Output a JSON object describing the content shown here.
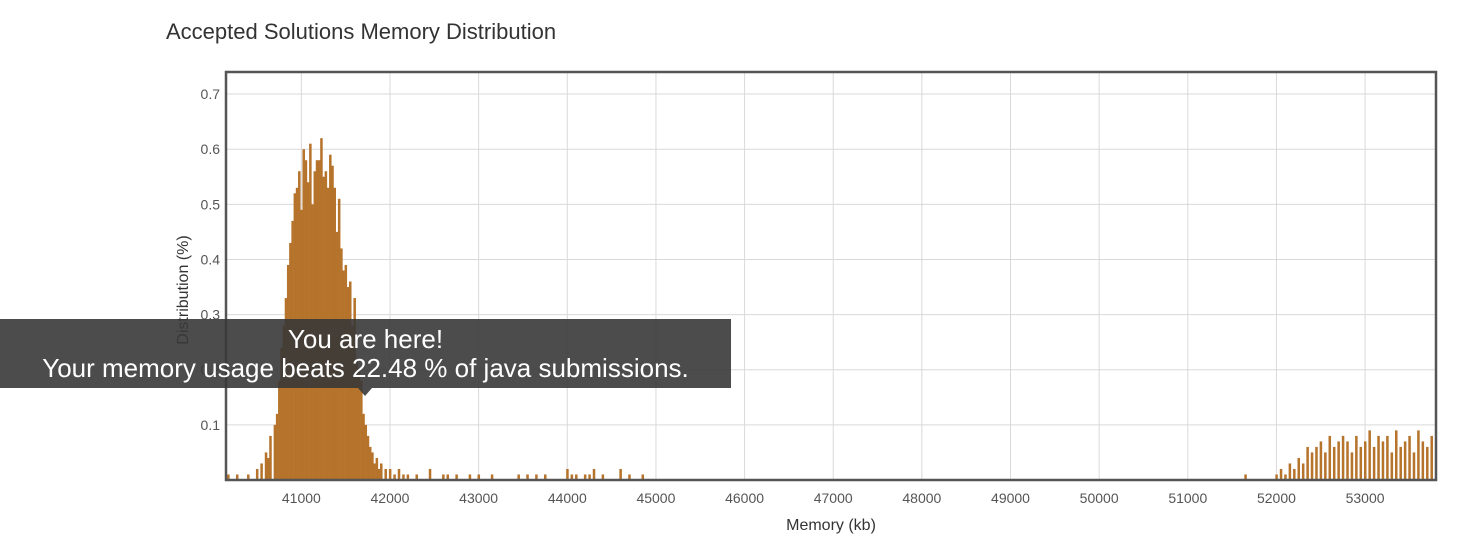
{
  "chart_data": {
    "type": "bar",
    "title": "Accepted Solutions Memory Distribution",
    "xlabel": "Memory (kb)",
    "ylabel": "Distribution (%)",
    "xlim": [
      40150,
      53800
    ],
    "ylim": [
      0,
      0.74
    ],
    "x_ticks": [
      41000,
      42000,
      43000,
      44000,
      45000,
      46000,
      47000,
      48000,
      49000,
      50000,
      51000,
      52000,
      53000
    ],
    "y_ticks": [
      0.1,
      0.2,
      0.3,
      0.4,
      0.5,
      0.6,
      0.7
    ],
    "grid": true,
    "bar_color": "#b5732b",
    "bin_width_kb": 25,
    "series": [
      {
        "x": [
          40175,
          40275,
          40400,
          40500,
          40550,
          40600,
          40625,
          40650,
          40700,
          40725,
          40750,
          40775,
          40800,
          40825,
          40850,
          40875,
          40900,
          40925,
          40950,
          40975,
          41000,
          41025,
          41050,
          41075,
          41100,
          41125,
          41150,
          41175,
          41200,
          41225,
          41250,
          41275,
          41300,
          41325,
          41350,
          41375,
          41400,
          41425,
          41450,
          41475,
          41500,
          41525,
          41550,
          41575,
          41600,
          41625,
          41650,
          41675,
          41700,
          41725,
          41750,
          41775,
          41800,
          41825,
          41850,
          41875,
          41900,
          41950,
          42000,
          42050,
          42100,
          42150,
          42200,
          42300,
          42450,
          42600,
          42650,
          42750,
          42900,
          43000,
          43150,
          43450,
          43550,
          43650,
          43750,
          44000,
          44050,
          44100,
          44200,
          44250,
          44300,
          44400,
          44600,
          44700,
          44850,
          51650,
          52000,
          52050,
          52100,
          52150,
          52200,
          52250,
          52300,
          52350,
          52400,
          52450,
          52500,
          52550,
          52600,
          52650,
          52700,
          52750,
          52800,
          52850,
          52900,
          52950,
          53000,
          53050,
          53100,
          53150,
          53200,
          53250,
          53300,
          53350,
          53400,
          53450,
          53500,
          53550,
          53600,
          53650,
          53700,
          53750
        ],
        "values": [
          0.01,
          0.01,
          0.01,
          0.02,
          0.03,
          0.05,
          0.04,
          0.08,
          0.1,
          0.12,
          0.18,
          0.24,
          0.28,
          0.33,
          0.39,
          0.43,
          0.47,
          0.52,
          0.53,
          0.56,
          0.49,
          0.6,
          0.58,
          0.54,
          0.61,
          0.5,
          0.56,
          0.58,
          0.58,
          0.62,
          0.55,
          0.56,
          0.53,
          0.59,
          0.57,
          0.53,
          0.45,
          0.51,
          0.42,
          0.38,
          0.39,
          0.35,
          0.36,
          0.28,
          0.33,
          0.22,
          0.2,
          0.18,
          0.12,
          0.1,
          0.08,
          0.06,
          0.05,
          0.03,
          0.04,
          0.02,
          0.03,
          0.02,
          0.02,
          0.01,
          0.02,
          0.01,
          0.01,
          0.01,
          0.02,
          0.01,
          0.01,
          0.01,
          0.01,
          0.01,
          0.01,
          0.01,
          0.01,
          0.01,
          0.01,
          0.02,
          0.01,
          0.01,
          0.01,
          0.01,
          0.02,
          0.01,
          0.02,
          0.01,
          0.01,
          0.01,
          0.01,
          0.02,
          0.01,
          0.03,
          0.02,
          0.04,
          0.03,
          0.06,
          0.05,
          0.06,
          0.07,
          0.05,
          0.08,
          0.06,
          0.07,
          0.08,
          0.07,
          0.05,
          0.08,
          0.06,
          0.07,
          0.09,
          0.06,
          0.08,
          0.07,
          0.08,
          0.05,
          0.09,
          0.06,
          0.07,
          0.08,
          0.05,
          0.09,
          0.07,
          0.06,
          0.08
        ]
      }
    ]
  },
  "tooltip": {
    "line1": "You are here!",
    "line2": "Your memory usage beats 22.48 % of java submissions."
  }
}
